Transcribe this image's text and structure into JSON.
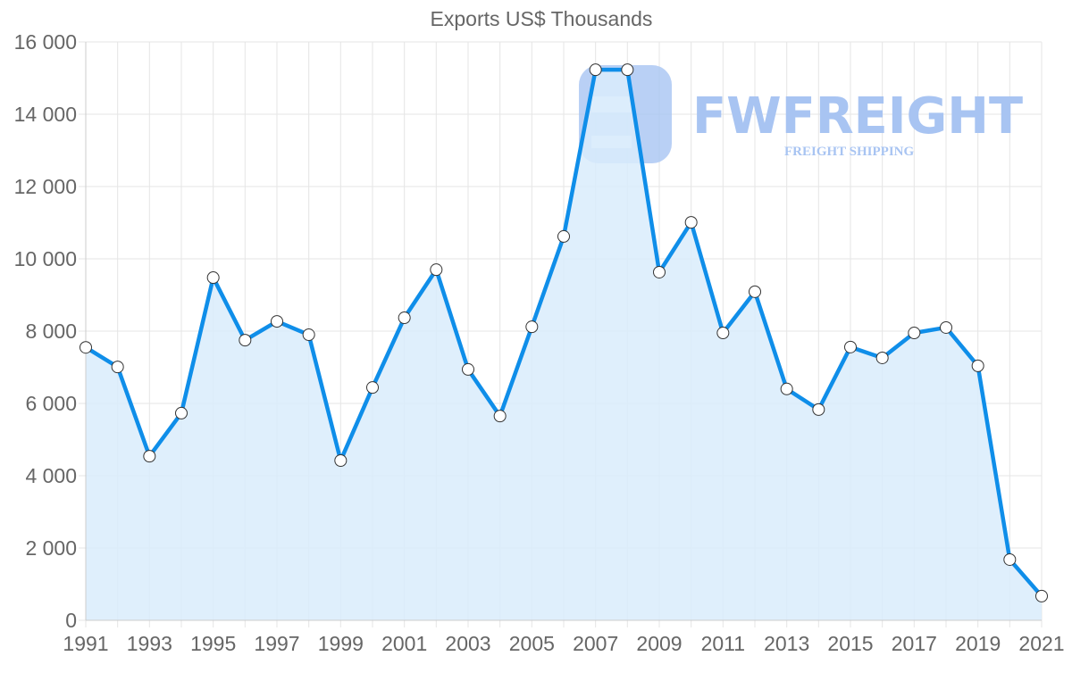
{
  "chart_data": {
    "type": "area",
    "title": "Exports US$ Thousands",
    "xlabel": "",
    "ylabel": "",
    "x": [
      1991,
      1992,
      1993,
      1994,
      1995,
      1996,
      1997,
      1998,
      1999,
      2000,
      2001,
      2002,
      2003,
      2004,
      2005,
      2006,
      2007,
      2008,
      2009,
      2010,
      2011,
      2012,
      2013,
      2014,
      2015,
      2016,
      2017,
      2018,
      2019,
      2020,
      2021
    ],
    "series": [
      {
        "name": "Exports US$ Thousands",
        "values": [
          7550,
          7010,
          4540,
          5730,
          9480,
          7750,
          8270,
          7900,
          4420,
          6440,
          8370,
          9700,
          6940,
          5650,
          8120,
          10620,
          15230,
          15230,
          9630,
          11010,
          7950,
          9090,
          6400,
          5830,
          7560,
          7260,
          7950,
          8100,
          7040,
          1680,
          670
        ]
      }
    ],
    "x_tick_labels": [
      "1991",
      "1993",
      "1995",
      "1997",
      "1999",
      "2001",
      "2003",
      "2005",
      "2007",
      "2009",
      "2011",
      "2013",
      "2015",
      "2017",
      "2019",
      "2021"
    ],
    "y_tick_labels": [
      "0",
      "2 000",
      "4 000",
      "6 000",
      "8 000",
      "10 000",
      "12 000",
      "14 000",
      "16 000"
    ],
    "ylim": [
      0,
      16000
    ],
    "grid": true,
    "legend": "none",
    "colors": {
      "line": "#0f8ee9",
      "fill": "#d9ecfc",
      "grid": "#e5e5e5",
      "marker_fill": "#ffffff",
      "marker_stroke": "#333333"
    }
  },
  "watermark": {
    "brand": "FWFREIGHT",
    "tagline": "FREIGHT SHIPPING",
    "color": "#a8c4f2"
  }
}
